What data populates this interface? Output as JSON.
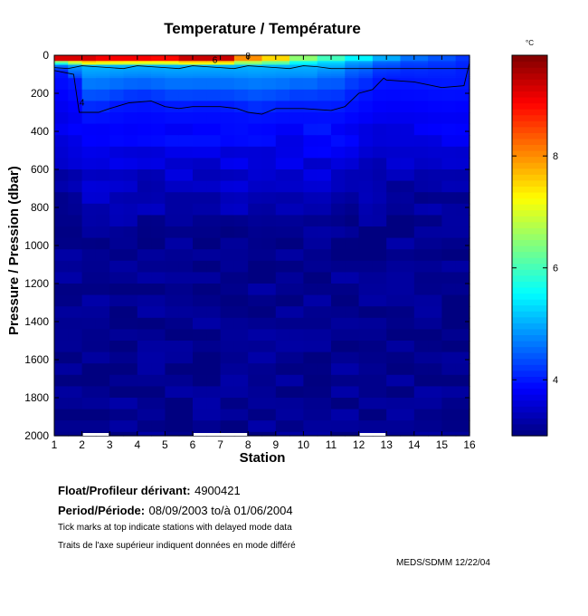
{
  "chart_data": {
    "type": "heatmap",
    "title": "Temperature / Température",
    "xlabel": "Station",
    "ylabel": "Pressure / Pression (dbar)",
    "colorbar_unit": "°C",
    "x_ticks": [
      "1",
      "2",
      "3",
      "4",
      "5",
      "6",
      "7",
      "8",
      "9",
      "10",
      "11",
      "12",
      "13",
      "14",
      "15",
      "16"
    ],
    "y_ticks": [
      "0",
      "200",
      "400",
      "600",
      "800",
      "1000",
      "1200",
      "1400",
      "1600",
      "1800",
      "2000"
    ],
    "colorbar_ticks": [
      "4",
      "6",
      "8"
    ],
    "xlim": [
      1,
      16
    ],
    "ylim": [
      0,
      2000
    ],
    "clim": [
      3,
      9.8
    ],
    "grid": false,
    "contour_labels": [
      "4",
      "6",
      "8"
    ],
    "delayed_mode_stations": [
      2,
      6,
      7,
      12
    ],
    "contour_4C_depth_dbar": [
      [
        1,
        80
      ],
      [
        1.7,
        100
      ],
      [
        1.9,
        300
      ],
      [
        2.6,
        300
      ],
      [
        3,
        280
      ],
      [
        3.7,
        250
      ],
      [
        4.5,
        240
      ],
      [
        5,
        270
      ],
      [
        5.5,
        280
      ],
      [
        6,
        270
      ],
      [
        7,
        270
      ],
      [
        7.6,
        280
      ],
      [
        8,
        300
      ],
      [
        8.5,
        310
      ],
      [
        9,
        280
      ],
      [
        10,
        280
      ],
      [
        11,
        290
      ],
      [
        11.5,
        270
      ],
      [
        12,
        200
      ],
      [
        12.5,
        180
      ],
      [
        12.9,
        120
      ],
      [
        13,
        130
      ],
      [
        14,
        140
      ],
      [
        15,
        170
      ],
      [
        15.8,
        160
      ],
      [
        16,
        40
      ]
    ],
    "surface_temperature": [
      9.2,
      9.2,
      9.0,
      9.0,
      8.9,
      9.3,
      9.3,
      8.0,
      7.5,
      6.5,
      6.0,
      5.5,
      5.0,
      4.6,
      4.4,
      4.2
    ]
  },
  "float": {
    "label": "Float/Profileur dérivant:",
    "value": "4900421"
  },
  "period": {
    "label": "Period/Période:",
    "value": "08/09/2003  to/à  01/06/2004"
  },
  "notes": {
    "line1": "Tick marks at top indicate stations with delayed mode data",
    "line2": "Traits de l'axe supérieur indiquent données en mode différé"
  },
  "credit": "MEDS/SDMM  12/22/04"
}
